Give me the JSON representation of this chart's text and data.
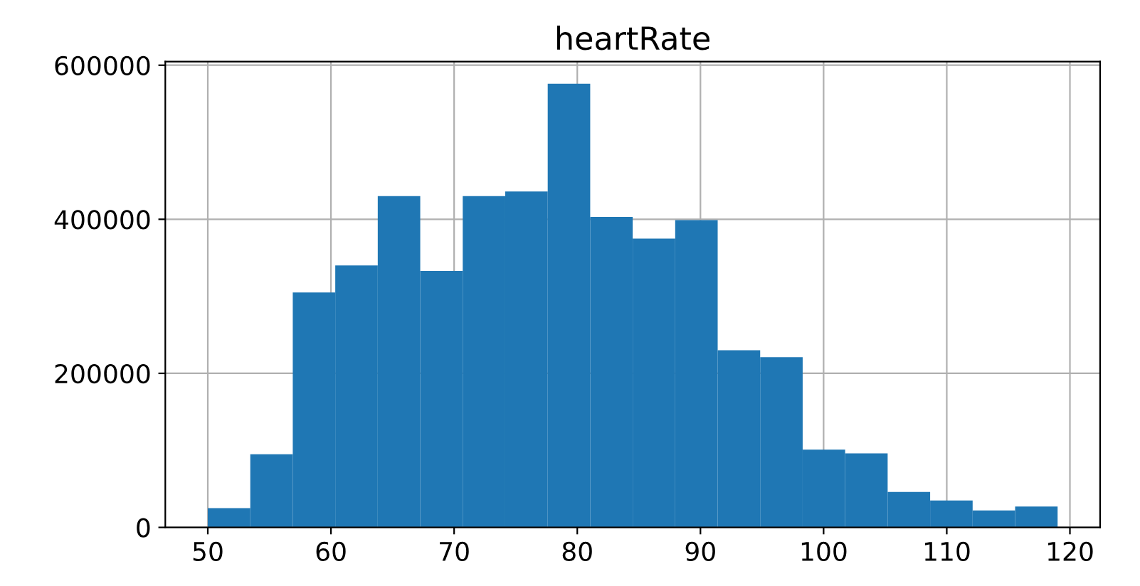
{
  "chart_data": {
    "type": "histogram",
    "title": "heartRate",
    "bins": [
      50,
      53.45,
      56.9,
      60.35,
      63.8,
      67.25,
      70.7,
      74.15,
      77.6,
      81.05,
      84.5,
      87.95,
      91.4,
      94.85,
      98.3,
      101.75,
      105.2,
      108.65,
      112.1,
      115.55,
      119
    ],
    "values": [
      25000,
      95000,
      305000,
      340000,
      430000,
      333000,
      430000,
      436000,
      576000,
      403000,
      375000,
      399000,
      230000,
      221000,
      101000,
      96000,
      46000,
      35000,
      22000,
      27000
    ],
    "color": "#1f77b4",
    "xlim": [
      46.55,
      122.45
    ],
    "ylim": [
      0,
      604800
    ],
    "xticks": [
      50,
      60,
      70,
      80,
      90,
      100,
      110,
      120
    ],
    "yticks": [
      0,
      200000,
      400000,
      600000
    ],
    "grid": true
  }
}
